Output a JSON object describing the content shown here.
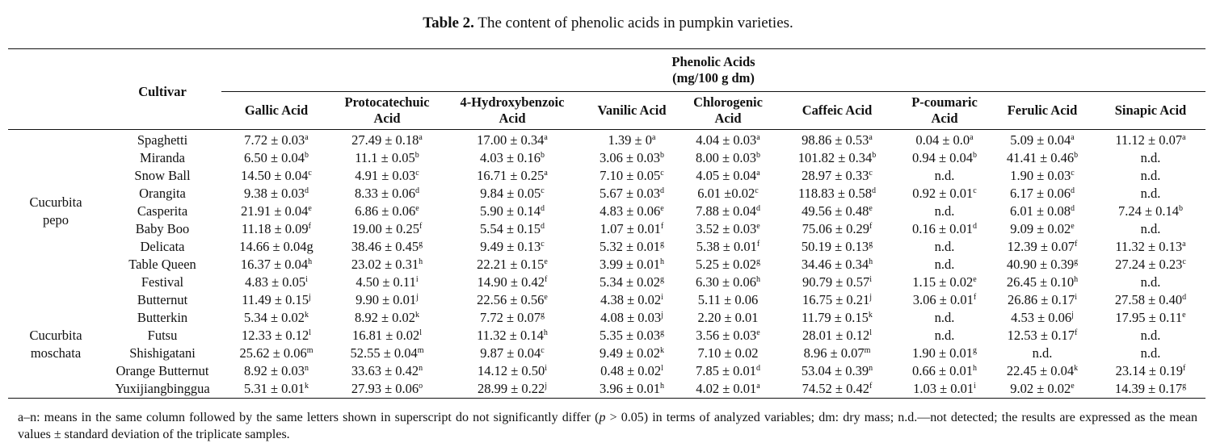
{
  "caption": {
    "label": "Table 2.",
    "text": "The content of phenolic acids in pumpkin varieties."
  },
  "header": {
    "cultivar": "Cultivar",
    "group_line1": "Phenolic Acids",
    "group_line2": "(mg/100 g dm)",
    "columns": [
      [
        "Gallic Acid",
        ""
      ],
      [
        "Protocatechuic",
        "Acid"
      ],
      [
        "4-Hydroxybenzoic",
        "Acid"
      ],
      [
        "Vanilic Acid",
        ""
      ],
      [
        "Chlorogenic",
        "Acid"
      ],
      [
        "Caffeic Acid",
        ""
      ],
      [
        "P-coumaric",
        "Acid"
      ],
      [
        "Ferulic Acid",
        ""
      ],
      [
        "Sinapic Acid",
        ""
      ]
    ]
  },
  "species": [
    {
      "line1": "Cucurbita",
      "line2": "pepo"
    },
    {
      "line1": "Cucurbita",
      "line2": "moschata"
    }
  ],
  "rows": [
    {
      "name": "Spaghetti",
      "cells": [
        [
          "7.72 ± 0.03",
          "a"
        ],
        [
          "27.49 ± 0.18",
          "a"
        ],
        [
          "17.00 ± 0.34",
          "a"
        ],
        [
          "1.39 ± 0",
          "a"
        ],
        [
          "4.04 ± 0.03",
          "a"
        ],
        [
          "98.86 ± 0.53",
          "a"
        ],
        [
          "0.04 ± 0.0",
          "a"
        ],
        [
          "5.09 ± 0.04",
          "a"
        ],
        [
          "11.12 ± 0.07",
          "a"
        ]
      ]
    },
    {
      "name": "Miranda",
      "cells": [
        [
          "6.50 ± 0.04",
          "b"
        ],
        [
          "11.1 ± 0.05",
          "b"
        ],
        [
          "4.03 ± 0.16",
          "b"
        ],
        [
          "3.06 ± 0.03",
          "b"
        ],
        [
          "8.00 ± 0.03",
          "b"
        ],
        [
          "101.82 ± 0.34",
          "b"
        ],
        [
          "0.94 ± 0.04",
          "b"
        ],
        [
          "41.41 ± 0.46",
          "b"
        ],
        [
          "n.d.",
          ""
        ]
      ]
    },
    {
      "name": "Snow Ball",
      "cells": [
        [
          "14.50 ± 0.04",
          "c"
        ],
        [
          "4.91 ± 0.03",
          "c"
        ],
        [
          "16.71 ± 0.25",
          "a"
        ],
        [
          "7.10 ± 0.05",
          "c"
        ],
        [
          "4.05 ± 0.04",
          "a"
        ],
        [
          "28.97 ± 0.33",
          "c"
        ],
        [
          "n.d.",
          ""
        ],
        [
          "1.90 ± 0.03",
          "c"
        ],
        [
          "n.d.",
          ""
        ]
      ]
    },
    {
      "name": "Orangita",
      "cells": [
        [
          "9.38 ± 0.03",
          "d"
        ],
        [
          "8.33 ± 0.06",
          "d"
        ],
        [
          "9.84 ± 0.05",
          "c"
        ],
        [
          "5.67 ± 0.03",
          "d"
        ],
        [
          "6.01 ±0.02",
          "c"
        ],
        [
          "118.83 ± 0.58",
          "d"
        ],
        [
          "0.92 ± 0.01",
          "c"
        ],
        [
          "6.17 ± 0.06",
          "d"
        ],
        [
          "n.d.",
          ""
        ]
      ]
    },
    {
      "name": "Casperita",
      "cells": [
        [
          "21.91 ± 0.04",
          "e"
        ],
        [
          "6.86 ± 0.06",
          "e"
        ],
        [
          "5.90 ± 0.14",
          "d"
        ],
        [
          "4.83 ± 0.06",
          "e"
        ],
        [
          "7.88 ± 0.04",
          "d"
        ],
        [
          "49.56 ± 0.48",
          "e"
        ],
        [
          "n.d.",
          ""
        ],
        [
          "6.01 ± 0.08",
          "d"
        ],
        [
          "7.24 ± 0.14",
          "b"
        ]
      ]
    },
    {
      "name": "Baby Boo",
      "cells": [
        [
          "11.18 ± 0.09",
          "f"
        ],
        [
          "19.00 ± 0.25",
          "f"
        ],
        [
          "5.54 ± 0.15",
          "d"
        ],
        [
          "1.07 ± 0.01",
          "f"
        ],
        [
          "3.52 ± 0.03",
          "e"
        ],
        [
          "75.06 ± 0.29",
          "f"
        ],
        [
          "0.16 ± 0.01",
          "d"
        ],
        [
          "9.09 ± 0.02",
          "e"
        ],
        [
          "n.d.",
          ""
        ]
      ]
    },
    {
      "name": "Delicata",
      "cells": [
        [
          "14.66 ± 0.04g",
          ""
        ],
        [
          "38.46 ± 0.45",
          "g"
        ],
        [
          "9.49 ± 0.13",
          "c"
        ],
        [
          "5.32 ± 0.01",
          "g"
        ],
        [
          "5.38 ± 0.01",
          "f"
        ],
        [
          "50.19 ± 0.13",
          "g"
        ],
        [
          "n.d.",
          ""
        ],
        [
          "12.39 ± 0.07",
          "f"
        ],
        [
          "11.32 ± 0.13",
          "a"
        ]
      ]
    },
    {
      "name": "Table Queen",
      "cells": [
        [
          "16.37 ± 0.04",
          "h"
        ],
        [
          "23.02 ± 0.31",
          "h"
        ],
        [
          "22.21 ± 0.15",
          "e"
        ],
        [
          "3.99 ± 0.01",
          "h"
        ],
        [
          "5.25 ± 0.02",
          "g"
        ],
        [
          "34.46 ± 0.34",
          "h"
        ],
        [
          "n.d.",
          ""
        ],
        [
          "40.90 ± 0.39",
          "g"
        ],
        [
          "27.24 ± 0.23",
          "c"
        ]
      ]
    },
    {
      "name": "Festival",
      "cells": [
        [
          "4.83 ± 0.05",
          "i"
        ],
        [
          "4.50 ± 0.11",
          "i"
        ],
        [
          "14.90 ± 0.42",
          "f"
        ],
        [
          "5.34 ± 0.02",
          "g"
        ],
        [
          "6.30 ± 0.06",
          "h"
        ],
        [
          "90.79 ± 0.57",
          "i"
        ],
        [
          "1.15 ± 0.02",
          "e"
        ],
        [
          "26.45 ± 0.10",
          "h"
        ],
        [
          "n.d.",
          ""
        ]
      ]
    },
    {
      "name": "Butternut",
      "cells": [
        [
          "11.49 ± 0.15",
          "j"
        ],
        [
          "9.90 ± 0.01",
          "j"
        ],
        [
          "22.56 ± 0.56",
          "e"
        ],
        [
          "4.38 ± 0.02",
          "i"
        ],
        [
          "5.11 ± 0.06",
          ""
        ],
        [
          "16.75 ± 0.21",
          "j"
        ],
        [
          "3.06 ± 0.01",
          "f"
        ],
        [
          "26.86 ± 0.17",
          "i"
        ],
        [
          "27.58 ± 0.40",
          "d"
        ]
      ]
    },
    {
      "name": "Butterkin",
      "cells": [
        [
          "5.34 ± 0.02",
          "k"
        ],
        [
          "8.92 ± 0.02",
          "k"
        ],
        [
          "7.72 ± 0.07",
          "g"
        ],
        [
          "4.08 ± 0.03",
          "j"
        ],
        [
          "2.20 ± 0.01",
          ""
        ],
        [
          "11.79 ± 0.15",
          "k"
        ],
        [
          "n.d.",
          ""
        ],
        [
          "4.53 ± 0.06",
          "j"
        ],
        [
          "17.95 ± 0.11",
          "e"
        ]
      ]
    },
    {
      "name": "Futsu",
      "cells": [
        [
          "12.33 ± 0.12",
          "l"
        ],
        [
          "16.81 ± 0.02",
          "l"
        ],
        [
          "11.32 ± 0.14",
          "h"
        ],
        [
          "5.35 ± 0.03",
          "g"
        ],
        [
          "3.56 ± 0.03",
          "e"
        ],
        [
          "28.01 ± 0.12",
          "l"
        ],
        [
          "n.d.",
          ""
        ],
        [
          "12.53 ± 0.17",
          "f"
        ],
        [
          "n.d.",
          ""
        ]
      ]
    },
    {
      "name": "Shishigatani",
      "cells": [
        [
          "25.62 ± 0.06",
          "m"
        ],
        [
          "52.55 ± 0.04",
          "m"
        ],
        [
          "9.87 ± 0.04",
          "c"
        ],
        [
          "9.49 ± 0.02",
          "k"
        ],
        [
          "7.10 ± 0.02",
          ""
        ],
        [
          "8.96 ± 0.07",
          "m"
        ],
        [
          "1.90 ± 0.01",
          "g"
        ],
        [
          "n.d.",
          ""
        ],
        [
          "n.d.",
          ""
        ]
      ]
    },
    {
      "name": "Orange Butternut",
      "cells": [
        [
          "8.92 ± 0.03",
          "n"
        ],
        [
          "33.63 ± 0.42",
          "n"
        ],
        [
          "14.12 ± 0.50",
          "i"
        ],
        [
          "0.48 ± 0.02",
          "l"
        ],
        [
          "7.85 ± 0.01",
          "d"
        ],
        [
          "53.04 ± 0.39",
          "n"
        ],
        [
          "0.66 ± 0.01",
          "h"
        ],
        [
          "22.45 ± 0.04",
          "k"
        ],
        [
          "23.14 ± 0.19",
          "f"
        ]
      ]
    },
    {
      "name": "Yuxijiangbinggua",
      "cells": [
        [
          "5.31 ± 0.01",
          "k"
        ],
        [
          "27.93 ± 0.06",
          "o"
        ],
        [
          "28.99 ± 0.22",
          "j"
        ],
        [
          "3.96 ± 0.01",
          "h"
        ],
        [
          "4.02 ± 0.01",
          "a"
        ],
        [
          "74.52 ± 0.42",
          "f"
        ],
        [
          "1.03 ± 0.01",
          "i"
        ],
        [
          "9.02 ± 0.02",
          "e"
        ],
        [
          "14.39 ± 0.17",
          "g"
        ]
      ]
    }
  ],
  "note": {
    "part1": "a–n: means in the same column followed by the same letters shown in superscript do not significantly differ (",
    "p": "p",
    "part2": " > 0.05) in terms of analyzed variables; dm: dry mass; n.d.—not detected; the results are expressed as the mean values ± standard deviation of the triplicate samples."
  }
}
